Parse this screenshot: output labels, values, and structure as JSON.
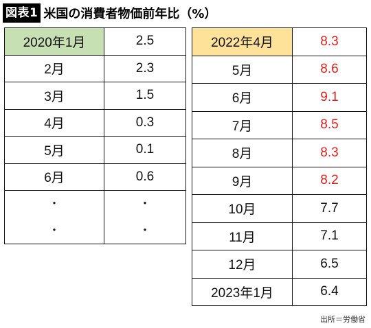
{
  "header": {
    "badge": "図表1",
    "title": "米国の消費者物価前年比（%）"
  },
  "left_table": {
    "rows": [
      {
        "period": "2020年1月",
        "value": "2.5"
      },
      {
        "period": "2月",
        "value": "2.3"
      },
      {
        "period": "3月",
        "value": "1.5"
      },
      {
        "period": "4月",
        "value": "0.3"
      },
      {
        "period": "5月",
        "value": "0.1"
      },
      {
        "period": "6月",
        "value": "0.6"
      }
    ],
    "ellipsis": "・"
  },
  "right_table": {
    "rows": [
      {
        "period": "2022年4月",
        "value": "8.3"
      },
      {
        "period": "5月",
        "value": "8.6"
      },
      {
        "period": "6月",
        "value": "9.1"
      },
      {
        "period": "7月",
        "value": "8.5"
      },
      {
        "period": "8月",
        "value": "8.3"
      },
      {
        "period": "9月",
        "value": "8.2"
      },
      {
        "period": "10月",
        "value": "7.7"
      },
      {
        "period": "11月",
        "value": "7.1"
      },
      {
        "period": "12月",
        "value": "6.5"
      },
      {
        "period": "2023年1月",
        "value": "6.4"
      }
    ],
    "header_color": "#ffe29a",
    "highlight_color": "#e0201b"
  },
  "left_header_color": "#c6dfb3",
  "source": "出所＝労働省"
}
